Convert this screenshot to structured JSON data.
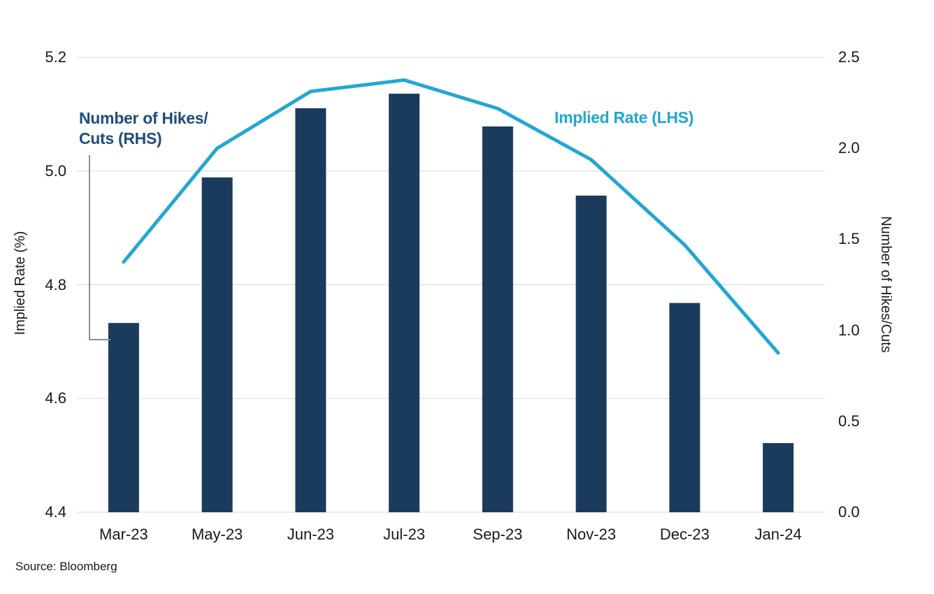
{
  "chart_data": {
    "type": "combo",
    "categories": [
      "Mar-23",
      "May-23",
      "Jun-23",
      "Jul-23",
      "Sep-23",
      "Nov-23",
      "Dec-23",
      "Jan-24"
    ],
    "series": [
      {
        "name": "Number of Hikes/Cuts (RHS)",
        "type": "bar",
        "axis": "right",
        "color": "#1b3b5c",
        "values": [
          1.04,
          1.84,
          2.22,
          2.3,
          2.12,
          1.74,
          1.15,
          0.38
        ]
      },
      {
        "name": "Implied Rate (LHS)",
        "type": "line",
        "axis": "left",
        "color": "#23a7d0",
        "values": [
          4.84,
          5.04,
          5.14,
          5.16,
          5.11,
          5.02,
          4.87,
          4.68
        ]
      }
    ],
    "left_axis": {
      "title": "Implied Rate (%)",
      "min": 4.4,
      "max": 5.2,
      "ticks": [
        "5.2",
        "5.0",
        "4.8",
        "4.6",
        "4.4"
      ]
    },
    "right_axis": {
      "title": "Number of Hikes/Cuts",
      "min": 0.0,
      "max": 2.5,
      "ticks": [
        "2.5",
        "2.0",
        "1.5",
        "1.0",
        "0.5",
        "0.0"
      ]
    },
    "grid": "horizontal",
    "legend_position": "inline-annotations"
  },
  "annotations": {
    "bar_series_label_line1": "Number of Hikes/",
    "bar_series_label_line2": "Cuts (RHS)",
    "line_series_label": "Implied Rate (LHS)"
  },
  "source": "Source: Bloomberg",
  "colors": {
    "bar": "#1b3b5c",
    "line": "#23a7d0",
    "annotation_navy": "#1f4e79",
    "callout": "#7f93a5",
    "gridline": "#d9d9d9",
    "tick_text": "#1a1a1a"
  }
}
